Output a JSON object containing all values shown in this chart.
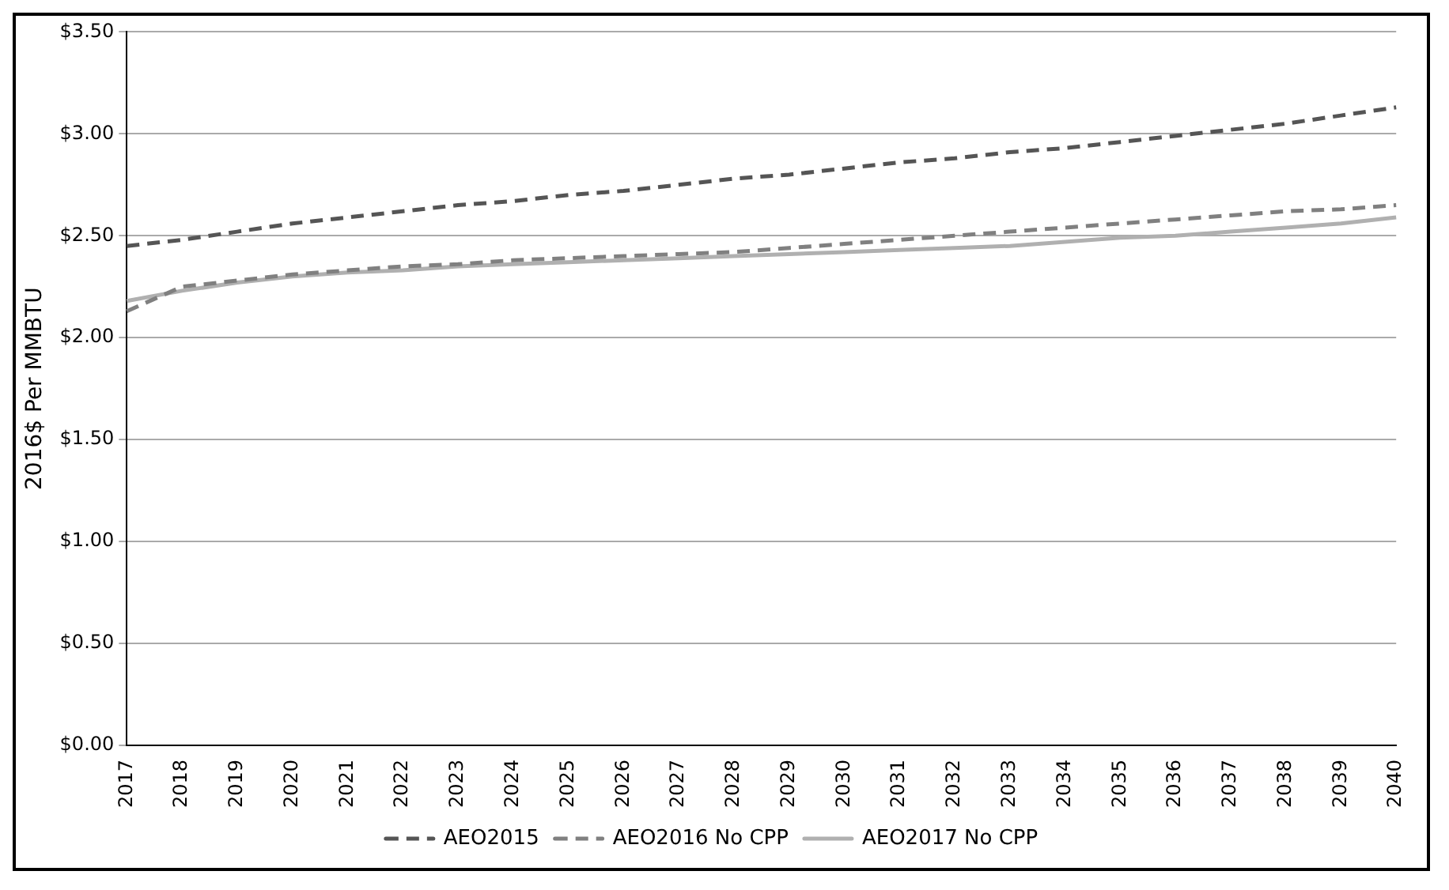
{
  "chart_data": {
    "type": "line",
    "ylabel": "2016$ Per MMBTU",
    "categories": [
      "2017",
      "2018",
      "2019",
      "2020",
      "2021",
      "2022",
      "2023",
      "2024",
      "2025",
      "2026",
      "2027",
      "2028",
      "2029",
      "2030",
      "2031",
      "2032",
      "2033",
      "2034",
      "2035",
      "2036",
      "2037",
      "2038",
      "2039",
      "2040"
    ],
    "series": [
      {
        "name": "AEO2015",
        "color": "#555555",
        "line_style": "dashed",
        "values": [
          2.45,
          2.48,
          2.52,
          2.56,
          2.59,
          2.62,
          2.65,
          2.67,
          2.7,
          2.72,
          2.75,
          2.78,
          2.8,
          2.83,
          2.86,
          2.88,
          2.91,
          2.93,
          2.96,
          2.99,
          3.02,
          3.05,
          3.09,
          3.13
        ]
      },
      {
        "name": "AEO2016 No CPP",
        "color": "#808080",
        "line_style": "dashed",
        "values": [
          2.13,
          2.25,
          2.28,
          2.31,
          2.33,
          2.35,
          2.36,
          2.38,
          2.39,
          2.4,
          2.41,
          2.42,
          2.44,
          2.46,
          2.48,
          2.5,
          2.52,
          2.54,
          2.56,
          2.58,
          2.6,
          2.62,
          2.63,
          2.65
        ]
      },
      {
        "name": "AEO2017 No CPP",
        "color": "#b0b0b0",
        "line_style": "solid",
        "values": [
          2.18,
          2.23,
          2.27,
          2.3,
          2.32,
          2.33,
          2.35,
          2.36,
          2.37,
          2.38,
          2.39,
          2.4,
          2.41,
          2.42,
          2.43,
          2.44,
          2.45,
          2.47,
          2.49,
          2.5,
          2.52,
          2.54,
          2.56,
          2.59
        ]
      }
    ],
    "ylim": [
      0,
      3.5
    ],
    "yticks": [
      {
        "value": 0,
        "label": "$0.00"
      },
      {
        "value": 0.5,
        "label": "$0.50"
      },
      {
        "value": 1,
        "label": "$1.00"
      },
      {
        "value": 1.5,
        "label": "$1.50"
      },
      {
        "value": 2,
        "label": "$2.00"
      },
      {
        "value": 2.5,
        "label": "$2.50"
      },
      {
        "value": 3,
        "label": "$3.00"
      },
      {
        "value": 3.5,
        "label": "$3.50"
      }
    ],
    "grid": "y",
    "legend": "bottom",
    "marker": "none"
  }
}
